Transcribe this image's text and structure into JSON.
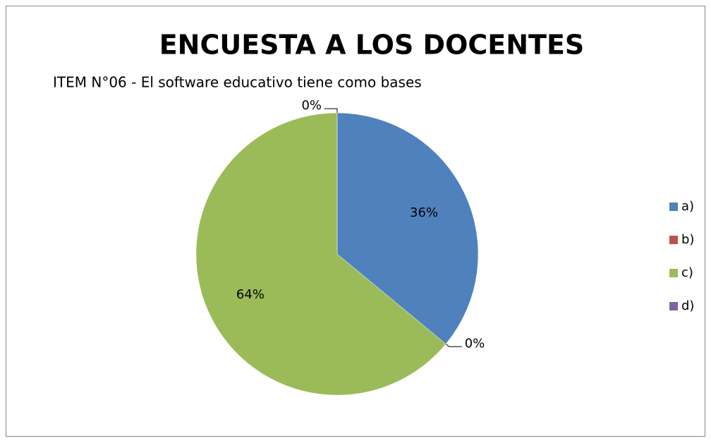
{
  "chart_data": {
    "type": "pie",
    "title": "ENCUESTA A LOS DOCENTES",
    "subtitle": "ITEM N°06 - El software educativo tiene como bases",
    "categories": [
      "a)",
      "b)",
      "c)",
      "d)"
    ],
    "values": [
      36,
      0,
      64,
      0
    ],
    "value_labels": [
      "36%",
      "0%",
      "64%",
      "0%"
    ],
    "colors": [
      "#4f81bd",
      "#c0504d",
      "#9bbb59",
      "#8064a2"
    ],
    "legend": "right"
  }
}
